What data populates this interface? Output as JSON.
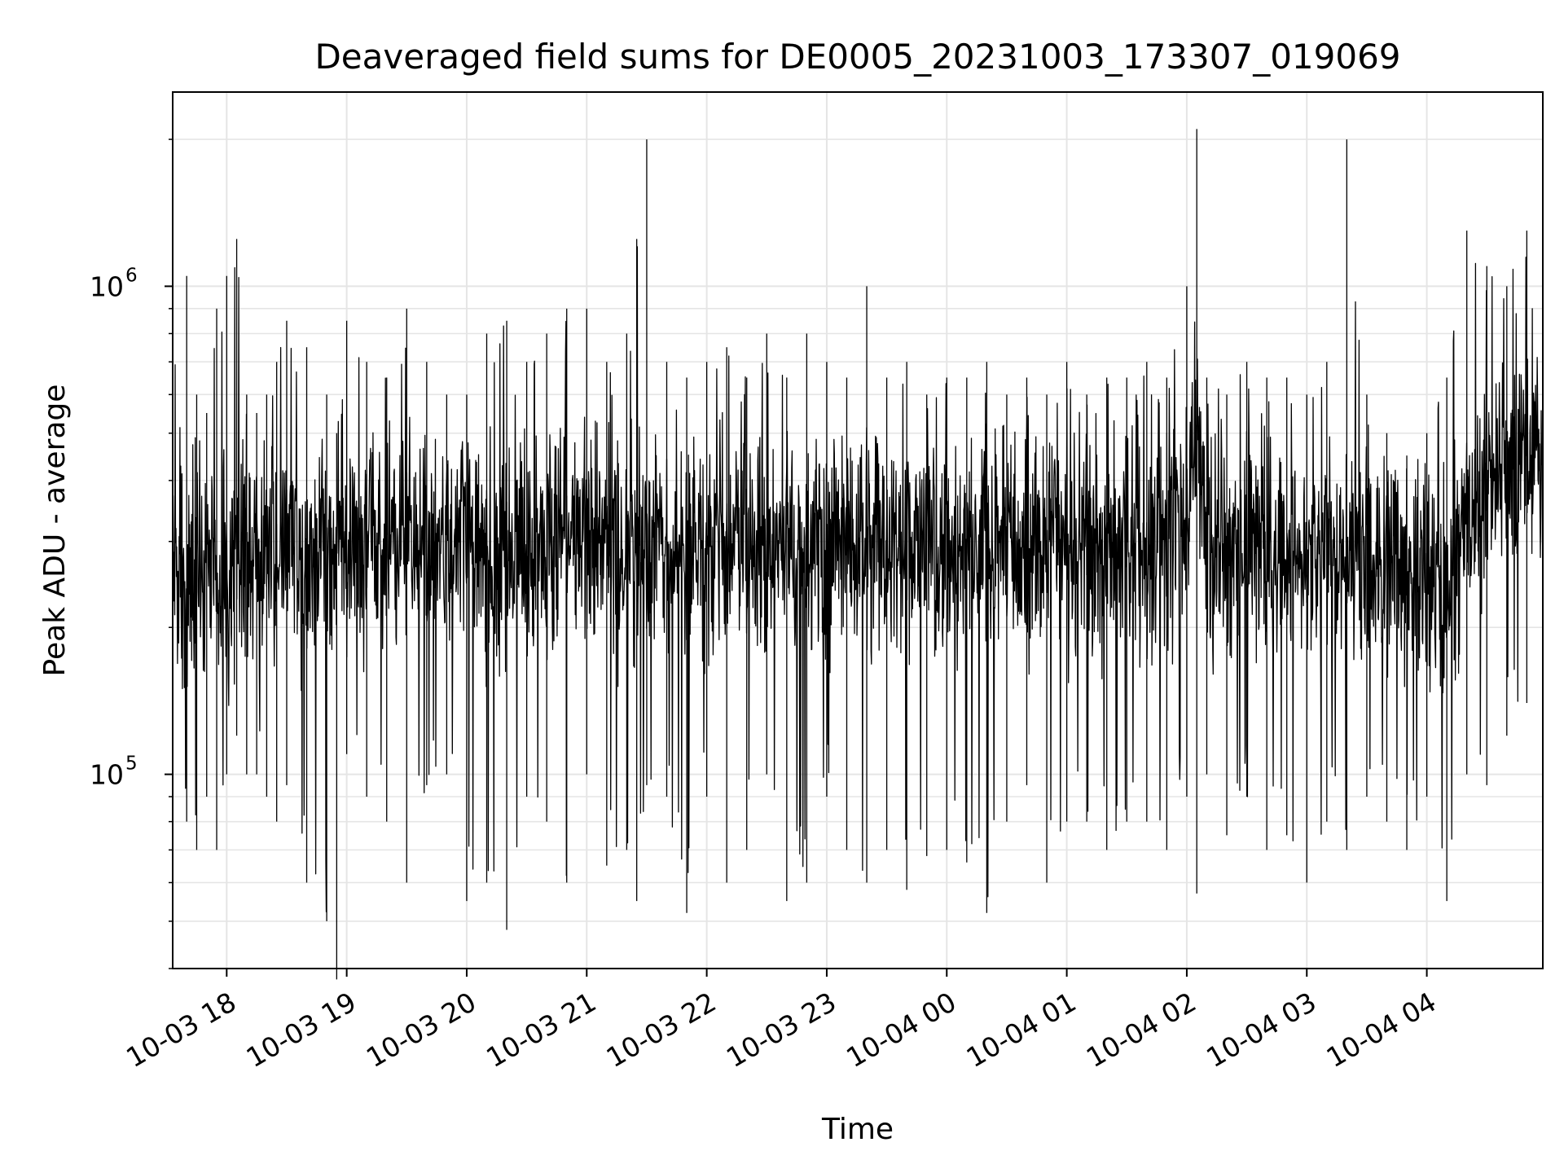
{
  "chart_data": {
    "type": "line",
    "title": "Deaveraged field sums for DE0005_20231003_173307_019069",
    "xlabel": "Time",
    "ylabel": "Peak ADU - average",
    "yscale": "log",
    "ylim": [
      40000,
      2500000
    ],
    "xlim": [
      "2023-10-03 17:33",
      "2023-10-04 04:58"
    ],
    "grid": true,
    "line_color": "#000000",
    "grid_color": "#e5e5e5",
    "x_ticks": [
      {
        "t": "2023-10-03 18:00",
        "label": "10-03 18"
      },
      {
        "t": "2023-10-03 19:00",
        "label": "10-03 19"
      },
      {
        "t": "2023-10-03 20:00",
        "label": "10-03 20"
      },
      {
        "t": "2023-10-03 21:00",
        "label": "10-03 21"
      },
      {
        "t": "2023-10-03 22:00",
        "label": "10-03 22"
      },
      {
        "t": "2023-10-03 23:00",
        "label": "10-03 23"
      },
      {
        "t": "2023-10-04 00:00",
        "label": "10-04 00"
      },
      {
        "t": "2023-10-04 01:00",
        "label": "10-04 01"
      },
      {
        "t": "2023-10-04 02:00",
        "label": "10-04 02"
      },
      {
        "t": "2023-10-04 03:00",
        "label": "10-04 03"
      },
      {
        "t": "2023-10-04 04:00",
        "label": "10-04 04"
      }
    ],
    "y_ticks": [
      {
        "value": 100000,
        "base": "10",
        "exp": "5"
      },
      {
        "value": 1000000,
        "base": "10",
        "exp": "6"
      }
    ],
    "series": [
      {
        "x": [
          "2023-10-03 17:33",
          "2023-10-03 17:40",
          "2023-10-03 17:45",
          "2023-10-03 17:50",
          "2023-10-03 17:55",
          "2023-10-03 18:00",
          "2023-10-03 18:05",
          "2023-10-03 18:10",
          "2023-10-03 18:15",
          "2023-10-03 18:20",
          "2023-10-03 18:25",
          "2023-10-03 18:30",
          "2023-10-03 18:40",
          "2023-10-03 18:50",
          "2023-10-03 18:55",
          "2023-10-03 19:00",
          "2023-10-03 19:10",
          "2023-10-03 19:20",
          "2023-10-03 19:30",
          "2023-10-03 19:40",
          "2023-10-03 19:50",
          "2023-10-03 20:00",
          "2023-10-03 20:10",
          "2023-10-03 20:20",
          "2023-10-03 20:30",
          "2023-10-03 20:40",
          "2023-10-03 20:50",
          "2023-10-03 21:00",
          "2023-10-03 21:10",
          "2023-10-03 21:20",
          "2023-10-03 21:25",
          "2023-10-03 21:30",
          "2023-10-03 21:40",
          "2023-10-03 21:50",
          "2023-10-03 22:00",
          "2023-10-03 22:10",
          "2023-10-03 22:20",
          "2023-10-03 22:30",
          "2023-10-03 22:40",
          "2023-10-03 22:50",
          "2023-10-03 23:00",
          "2023-10-03 23:10",
          "2023-10-03 23:20",
          "2023-10-03 23:30",
          "2023-10-03 23:40",
          "2023-10-03 23:50",
          "2023-10-04 00:00",
          "2023-10-04 00:10",
          "2023-10-04 00:20",
          "2023-10-04 00:30",
          "2023-10-04 00:40",
          "2023-10-04 00:50",
          "2023-10-04 01:00",
          "2023-10-04 01:10",
          "2023-10-04 01:20",
          "2023-10-04 01:30",
          "2023-10-04 01:40",
          "2023-10-04 01:50",
          "2023-10-04 02:00",
          "2023-10-04 02:05",
          "2023-10-04 02:10",
          "2023-10-04 02:20",
          "2023-10-04 02:30",
          "2023-10-04 02:40",
          "2023-10-04 02:50",
          "2023-10-04 03:00",
          "2023-10-04 03:10",
          "2023-10-04 03:20",
          "2023-10-04 03:30",
          "2023-10-04 03:40",
          "2023-10-04 03:50",
          "2023-10-04 04:00",
          "2023-10-04 04:10",
          "2023-10-04 04:20",
          "2023-10-04 04:30",
          "2023-10-04 04:40",
          "2023-10-04 04:50",
          "2023-10-04 04:58"
        ],
        "y_low": [
          250000,
          80000,
          70000,
          90000,
          70000,
          100000,
          120000,
          100000,
          100000,
          90000,
          80000,
          95000,
          60000,
          50000,
          38000,
          110000,
          90000,
          80000,
          60000,
          95000,
          100000,
          55000,
          60000,
          48000,
          90000,
          80000,
          60000,
          100000,
          65000,
          70000,
          55000,
          95000,
          90000,
          52000,
          90000,
          60000,
          70000,
          100000,
          55000,
          60000,
          90000,
          70000,
          60000,
          70000,
          58000,
          68000,
          70000,
          66000,
          52000,
          80000,
          95000,
          60000,
          80000,
          80000,
          70000,
          80000,
          80000,
          70000,
          90000,
          57000,
          100000,
          75000,
          90000,
          70000,
          75000,
          60000,
          80000,
          70000,
          90000,
          80000,
          70000,
          90000,
          55000,
          100000,
          95000,
          120000,
          140000,
          250000
        ],
        "y_mid": [
          260000,
          280000,
          270000,
          290000,
          260000,
          270000,
          300000,
          280000,
          270000,
          290000,
          280000,
          290000,
          280000,
          290000,
          270000,
          280000,
          300000,
          290000,
          300000,
          300000,
          290000,
          300000,
          280000,
          290000,
          300000,
          290000,
          300000,
          290000,
          300000,
          290000,
          300000,
          300000,
          290000,
          300000,
          290000,
          300000,
          300000,
          290000,
          300000,
          280000,
          300000,
          310000,
          300000,
          300000,
          300000,
          290000,
          300000,
          290000,
          300000,
          300000,
          310000,
          300000,
          310000,
          300000,
          300000,
          310000,
          300000,
          310000,
          300000,
          550000,
          280000,
          290000,
          300000,
          280000,
          290000,
          270000,
          280000,
          280000,
          280000,
          270000,
          260000,
          250000,
          240000,
          330000,
          380000,
          420000,
          450000,
          430000
        ],
        "y_high": [
          700000,
          1050000,
          600000,
          550000,
          900000,
          1050000,
          1250000,
          600000,
          550000,
          600000,
          700000,
          850000,
          750000,
          600000,
          500000,
          850000,
          700000,
          650000,
          900000,
          700000,
          600000,
          600000,
          800000,
          850000,
          700000,
          800000,
          900000,
          900000,
          700000,
          800000,
          1250000,
          2000000,
          700000,
          650000,
          700000,
          750000,
          650000,
          800000,
          650000,
          800000,
          700000,
          650000,
          1000000,
          650000,
          700000,
          600000,
          650000,
          650000,
          700000,
          600000,
          650000,
          600000,
          700000,
          600000,
          650000,
          650000,
          700000,
          650000,
          1000000,
          2100000,
          650000,
          600000,
          700000,
          650000,
          650000,
          600000,
          700000,
          2000000,
          600000,
          500000,
          450000,
          500000,
          650000,
          1300000,
          1100000,
          1000000,
          1300000,
          750000
        ]
      }
    ]
  }
}
